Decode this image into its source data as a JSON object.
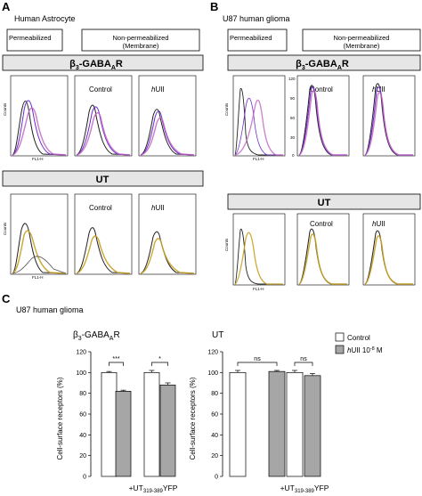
{
  "panel_a": {
    "letter": "A",
    "title": "Human Astrocyte",
    "perm_label": "Permeabilized",
    "nonperm_label_1": "Non-permeabilized",
    "nonperm_label_2": "(Membrane)",
    "bar1_main": "β",
    "bar1_sub": "3",
    "bar1_rest": "-GABA",
    "bar1_sub2": "A",
    "bar1_end": "R",
    "bar2": "UT",
    "control_label": "Control",
    "huii_i": "h",
    "huii_rest": "UII",
    "counts_label": "Counts",
    "fl_label": "FL1-H"
  },
  "panel_b": {
    "letter": "B",
    "title": "U87 human glioma",
    "perm_label": "Permeabilized",
    "nonperm_label_1": "Non-permeabilized",
    "nonperm_label_2": "(Membrane)",
    "bar1_main": "β",
    "bar1_sub": "3",
    "bar1_rest": "-GABA",
    "bar1_sub2": "A",
    "bar1_end": "R",
    "bar2": "UT",
    "control_label": "Control",
    "huii_i": "h",
    "huii_rest": "UII",
    "counts_label": "Counts",
    "fl_label": "FL1-H",
    "y_ticks": [
      "120",
      "90",
      "60",
      "30",
      "0"
    ]
  },
  "panel_c": {
    "letter": "C",
    "title": "U87 human glioma",
    "legend": {
      "control": "Control",
      "huii_i": "h",
      "huii_rest": "UII 10",
      "huii_exp": "-8",
      "huii_unit": " M"
    },
    "chart_data": [
      {
        "type": "bar",
        "title_main": "β",
        "title_sub": "3",
        "title_rest": "-GABA",
        "title_sub2": "A",
        "title_end": "R",
        "ylabel": "Cell-surface receptors (%)",
        "ylim": [
          0,
          120
        ],
        "yticks": [
          0,
          20,
          40,
          60,
          80,
          100,
          120
        ],
        "groups": [
          "",
          "+UT319-389YFP"
        ],
        "group_label_pre": "+UT",
        "group_label_sub": "319-389",
        "group_label_post": "YFP",
        "series": [
          {
            "name": "Control",
            "color": "#ffffff",
            "values": [
              100,
              100
            ],
            "err": [
              1,
              2
            ]
          },
          {
            "name": "hUII 10-8 M",
            "color": "#a6a6a6",
            "values": [
              82,
              88
            ],
            "err": [
              1,
              2
            ]
          }
        ],
        "significance": [
          "***",
          "*"
        ]
      },
      {
        "type": "bar",
        "title": "UT",
        "ylim": [
          0,
          120
        ],
        "yticks": [
          0,
          20,
          40,
          60,
          80,
          100,
          120
        ],
        "groups": [
          "",
          "+UT319-389YFP"
        ],
        "group_label_pre": "+UT",
        "group_label_sub": "319-389",
        "group_label_post": "YFP",
        "series": [
          {
            "name": "Control",
            "color": "#ffffff",
            "values": [
              100,
              100
            ],
            "err": [
              2,
              2
            ]
          },
          {
            "name": "hUII 10-8 M",
            "color": "#a6a6a6",
            "values": [
              101,
              97
            ],
            "err": [
              1,
              2
            ]
          }
        ],
        "significance": [
          "ns",
          "ns"
        ]
      }
    ]
  }
}
